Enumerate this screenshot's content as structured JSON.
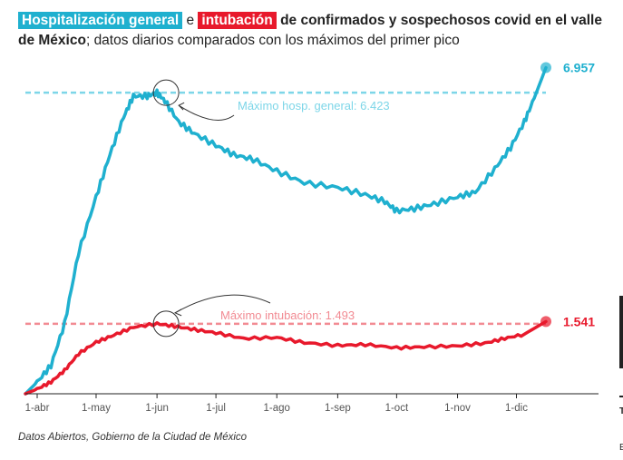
{
  "title": {
    "tag_hosp": "Hospitalización general",
    "sep": "e",
    "tag_intub": "intubación",
    "rest_bold": "de confirmados y sospechosos covid en el valle de México",
    "rest_normal": "; datos diarios comparados con los máximos del primer pico"
  },
  "source": "Datos Abiertos, Gobierno de la Ciudad de México",
  "colors": {
    "hosp": "#1fb0cf",
    "hosp_ref": "#7dd6e8",
    "intub": "#e8192c",
    "intub_ref": "#f28b93",
    "axis": "#222222"
  },
  "chart_data": {
    "type": "line",
    "xlabel": "",
    "ylabel": "",
    "x_range": [
      "2020-03-26",
      "2020-12-16"
    ],
    "ylim": [
      0,
      7200
    ],
    "x_ticks": [
      {
        "label": "1-abr",
        "date": "2020-04-01"
      },
      {
        "label": "1-may",
        "date": "2020-05-01"
      },
      {
        "label": "1-jun",
        "date": "2020-06-01"
      },
      {
        "label": "1-jul",
        "date": "2020-07-01"
      },
      {
        "label": "1-ago",
        "date": "2020-08-01"
      },
      {
        "label": "1-sep",
        "date": "2020-09-01"
      },
      {
        "label": "1-oct",
        "date": "2020-10-01"
      },
      {
        "label": "1-nov",
        "date": "2020-11-01"
      },
      {
        "label": "1-dic",
        "date": "2020-12-01"
      }
    ],
    "grid": false,
    "series": [
      {
        "name": "Hospitalización general",
        "points": [
          [
            "2020-03-26",
            0
          ],
          [
            "2020-04-01",
            250
          ],
          [
            "2020-04-08",
            600
          ],
          [
            "2020-04-15",
            1500
          ],
          [
            "2020-04-22",
            3000
          ],
          [
            "2020-05-01",
            4200
          ],
          [
            "2020-05-08",
            5100
          ],
          [
            "2020-05-15",
            5900
          ],
          [
            "2020-05-20",
            6350
          ],
          [
            "2020-05-27",
            6350
          ],
          [
            "2020-06-01",
            6423
          ],
          [
            "2020-06-05",
            6250
          ],
          [
            "2020-06-12",
            5800
          ],
          [
            "2020-06-20",
            5550
          ],
          [
            "2020-07-01",
            5300
          ],
          [
            "2020-07-10",
            5100
          ],
          [
            "2020-07-20",
            5000
          ],
          [
            "2020-08-01",
            4750
          ],
          [
            "2020-08-15",
            4500
          ],
          [
            "2020-09-01",
            4400
          ],
          [
            "2020-09-15",
            4250
          ],
          [
            "2020-09-25",
            4100
          ],
          [
            "2020-10-01",
            3900
          ],
          [
            "2020-10-10",
            3950
          ],
          [
            "2020-10-20",
            4050
          ],
          [
            "2020-11-01",
            4200
          ],
          [
            "2020-11-10",
            4300
          ],
          [
            "2020-11-20",
            4800
          ],
          [
            "2020-11-28",
            5250
          ],
          [
            "2020-12-05",
            5800
          ],
          [
            "2020-12-10",
            6300
          ],
          [
            "2020-12-16",
            6957
          ]
        ],
        "end_label": "6.957"
      },
      {
        "name": "Intubación",
        "points": [
          [
            "2020-03-26",
            0
          ],
          [
            "2020-04-01",
            100
          ],
          [
            "2020-04-08",
            250
          ],
          [
            "2020-04-15",
            500
          ],
          [
            "2020-04-22",
            850
          ],
          [
            "2020-05-01",
            1100
          ],
          [
            "2020-05-10",
            1250
          ],
          [
            "2020-05-20",
            1420
          ],
          [
            "2020-06-01",
            1493
          ],
          [
            "2020-06-10",
            1440
          ],
          [
            "2020-06-20",
            1370
          ],
          [
            "2020-07-01",
            1300
          ],
          [
            "2020-07-15",
            1180
          ],
          [
            "2020-08-01",
            1200
          ],
          [
            "2020-08-15",
            1090
          ],
          [
            "2020-09-01",
            1030
          ],
          [
            "2020-09-15",
            1050
          ],
          [
            "2020-10-01",
            980
          ],
          [
            "2020-10-15",
            1000
          ],
          [
            "2020-11-01",
            1020
          ],
          [
            "2020-11-15",
            1080
          ],
          [
            "2020-11-25",
            1180
          ],
          [
            "2020-12-05",
            1270
          ],
          [
            "2020-12-16",
            1541
          ]
        ],
        "end_label": "1.541"
      }
    ],
    "reference_lines": [
      {
        "series": "Hospitalización general",
        "value": 6423,
        "label": "Máximo hosp. general: 6.423",
        "peak_date": "2020-06-01"
      },
      {
        "series": "Intubación",
        "value": 1493,
        "label": "Máximo intubación: 1.493",
        "peak_date": "2020-06-01"
      }
    ]
  }
}
